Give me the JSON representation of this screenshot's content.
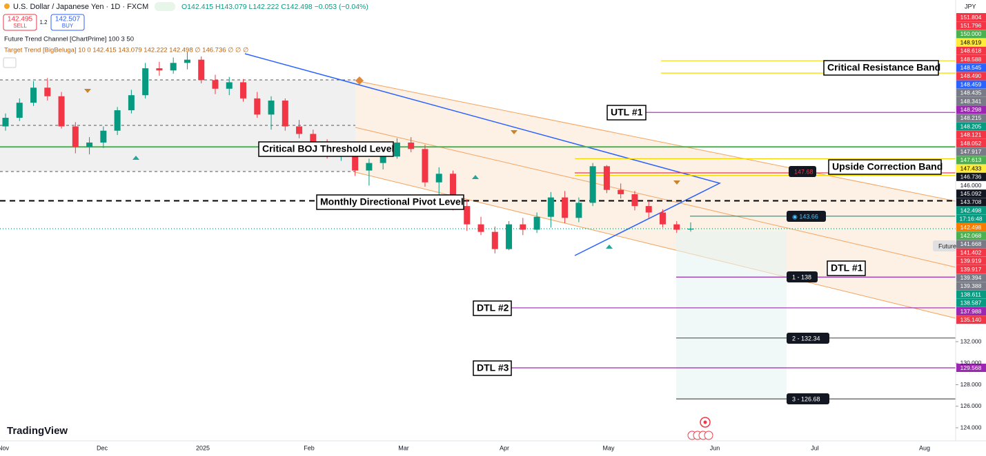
{
  "header": {
    "symbol": "U.S. Dollar / Japanese Yen · 1D · FXCM",
    "ohlc": "O142.415 H143.079 L142.222 C142.498 −0.053 (−0.04%)",
    "sell_price": "142.495",
    "sell": "SELL",
    "spread": "1.2",
    "buy_price": "142.507",
    "buy": "BUY",
    "indicator_1": "Future Trend Channel [ChartPrime] 100 3 50",
    "indicator_2": "Target Trend [BigBeluga] 10 0 142.415 143.079 142.222 142.498 ∅ 146.736 ∅ ∅ ∅",
    "currency": "JPY"
  },
  "candles": [
    [
      152.0,
      153.2,
      151.6,
      152.8
    ],
    [
      152.8,
      154.6,
      152.5,
      154.2
    ],
    [
      154.2,
      156.2,
      153.9,
      155.6
    ],
    [
      155.6,
      156.5,
      154.4,
      154.8
    ],
    [
      154.8,
      155.2,
      151.8,
      152.0
    ],
    [
      152.0,
      152.4,
      149.5,
      150.1
    ],
    [
      150.1,
      151.0,
      149.4,
      150.5
    ],
    [
      150.5,
      152.0,
      150.0,
      151.6
    ],
    [
      151.6,
      153.8,
      151.2,
      153.5
    ],
    [
      153.5,
      155.4,
      153.2,
      154.9
    ],
    [
      154.9,
      157.9,
      154.6,
      157.4
    ],
    [
      157.4,
      158.0,
      156.7,
      157.2
    ],
    [
      157.2,
      158.4,
      156.9,
      157.9
    ],
    [
      157.9,
      158.9,
      157.3,
      158.2
    ],
    [
      158.2,
      158.5,
      156.0,
      156.3
    ],
    [
      156.3,
      156.8,
      155.0,
      155.5
    ],
    [
      155.5,
      156.6,
      154.9,
      156.1
    ],
    [
      156.1,
      156.4,
      154.3,
      154.6
    ],
    [
      154.6,
      155.2,
      152.8,
      153.1
    ],
    [
      153.1,
      154.8,
      151.7,
      154.4
    ],
    [
      154.4,
      154.6,
      151.6,
      152.0
    ],
    [
      152.0,
      152.6,
      150.9,
      151.3
    ],
    [
      151.3,
      151.7,
      149.6,
      150.0
    ],
    [
      150.0,
      150.8,
      149.0,
      149.4
    ],
    [
      149.4,
      150.2,
      148.8,
      149.8
    ],
    [
      149.8,
      150.0,
      147.4,
      147.9
    ],
    [
      147.9,
      149.0,
      146.5,
      148.6
    ],
    [
      148.6,
      149.5,
      148.0,
      149.2
    ],
    [
      149.2,
      150.9,
      149.0,
      150.5
    ],
    [
      150.5,
      151.0,
      149.6,
      149.9
    ],
    [
      149.9,
      150.3,
      146.4,
      146.8
    ],
    [
      146.8,
      148.2,
      144.6,
      147.6
    ],
    [
      147.6,
      147.9,
      144.2,
      144.6
    ],
    [
      144.6,
      145.2,
      142.3,
      142.9
    ],
    [
      142.9,
      143.6,
      141.9,
      142.2
    ],
    [
      142.2,
      142.7,
      140.2,
      140.6
    ],
    [
      140.6,
      143.2,
      140.5,
      142.9
    ],
    [
      142.9,
      143.5,
      141.9,
      142.4
    ],
    [
      142.4,
      144.0,
      142.1,
      143.6
    ],
    [
      143.6,
      145.9,
      142.6,
      145.4
    ],
    [
      145.4,
      146.0,
      143.0,
      143.5
    ],
    [
      143.5,
      145.4,
      143.1,
      144.9
    ],
    [
      144.9,
      148.6,
      144.6,
      148.3
    ],
    [
      148.3,
      148.4,
      145.8,
      146.1
    ],
    [
      146.1,
      146.7,
      145.3,
      145.7
    ],
    [
      145.7,
      146.0,
      144.2,
      144.6
    ],
    [
      144.6,
      145.1,
      143.5,
      144.0
    ],
    [
      144.0,
      144.3,
      142.6,
      142.9
    ],
    [
      142.9,
      143.2,
      142.1,
      142.4
    ],
    [
      142.415,
      143.079,
      142.222,
      142.498
    ]
  ],
  "levels": [
    {
      "price": 158.1,
      "color": "#f5d800",
      "from": 958
    },
    {
      "price": 156.95,
      "color": "#f5d800",
      "from": 958
    },
    {
      "price": 153.3,
      "color": "#9c27b0",
      "from": 936
    },
    {
      "price": 150.1,
      "color": "#4caf50",
      "from": 0
    },
    {
      "price": 149.0,
      "color": "#f5d800",
      "from": 833
    },
    {
      "price": 147.45,
      "color": "#f5d800",
      "from": 833
    },
    {
      "price": 147.68,
      "color": "#f23645",
      "from": 833
    },
    {
      "price": 145.092,
      "color": "#000000",
      "from": 0,
      "dashed": true
    },
    {
      "price": 142.498,
      "color": "#089981",
      "from": 0,
      "dotted": true
    },
    {
      "price": 143.66,
      "color": "#089981",
      "from": 1000
    },
    {
      "price": 138.0,
      "color": "#9c27b0",
      "from": 980
    },
    {
      "price": 135.14,
      "color": "#9c27b0",
      "from": 741
    },
    {
      "price": 132.34,
      "color": "#555555",
      "from": 980
    },
    {
      "price": 129.568,
      "color": "#9c27b0",
      "from": 741
    },
    {
      "price": 126.68,
      "color": "#555555",
      "from": 980
    }
  ],
  "annotations": [
    "Critical Resistance Band",
    "UTL #1",
    "Critical BOJ Threshold Level",
    "Upside Correction Band",
    "Monthly Directional Pivot Level",
    "DTL #1",
    "DTL #2",
    "DTL #3"
  ],
  "tags": [
    "147.68",
    "◉ 143.66",
    "1 - 138",
    "2 - 132.34",
    "3 - 126.68",
    "Future"
  ],
  "axis_stack": [
    {
      "text": "151.804",
      "bg": "#f23645",
      "fg": "#fff"
    },
    {
      "text": "151.796",
      "bg": "#f23645",
      "fg": "#fff"
    },
    {
      "text": "150.000",
      "bg": "#4caf50",
      "fg": "#fff"
    },
    {
      "text": "148.919",
      "bg": "#ffeb3b",
      "fg": "#000"
    },
    {
      "text": "148.618",
      "bg": "#f23645",
      "fg": "#fff"
    },
    {
      "text": "148.588",
      "bg": "#f23645",
      "fg": "#fff"
    },
    {
      "text": "148.545",
      "bg": "#2962ff",
      "fg": "#fff"
    },
    {
      "text": "148.490",
      "bg": "#f23645",
      "fg": "#fff"
    },
    {
      "text": "148.459",
      "bg": "#2962ff",
      "fg": "#fff"
    },
    {
      "text": "148.435",
      "bg": "#787b86",
      "fg": "#fff"
    },
    {
      "text": "148.341",
      "bg": "#787b86",
      "fg": "#fff"
    },
    {
      "text": "148.298",
      "bg": "#9c27b0",
      "fg": "#fff"
    },
    {
      "text": "148.215",
      "bg": "#787b86",
      "fg": "#fff"
    },
    {
      "text": "148.205",
      "bg": "#089981",
      "fg": "#fff"
    },
    {
      "text": "148.121",
      "bg": "#f23645",
      "fg": "#fff"
    },
    {
      "text": "148.052",
      "bg": "#f23645",
      "fg": "#fff"
    },
    {
      "text": "147.917",
      "bg": "#787b86",
      "fg": "#fff"
    },
    {
      "text": "147.613",
      "bg": "#4caf50",
      "fg": "#fff"
    },
    {
      "text": "147.433",
      "bg": "#ffeb3b",
      "fg": "#000"
    },
    {
      "text": "146.736",
      "bg": "#131722",
      "fg": "#fff"
    },
    {
      "text": "146.000",
      "bg": "#ffffff",
      "fg": "#131722"
    },
    {
      "text": "145.092",
      "bg": "#131722",
      "fg": "#fff"
    },
    {
      "text": "143.708",
      "bg": "#131722",
      "fg": "#fff"
    },
    {
      "text": "142.498",
      "bg": "#089981",
      "fg": "#fff"
    },
    {
      "text": "17:16:48",
      "bg": "#089981",
      "fg": "#fff"
    },
    {
      "text": "142.498",
      "bg": "#f57c00",
      "fg": "#fff"
    },
    {
      "text": "142.068",
      "bg": "#4caf50",
      "fg": "#fff"
    },
    {
      "text": "141.668",
      "bg": "#787b86",
      "fg": "#fff"
    },
    {
      "text": "141.402",
      "bg": "#f23645",
      "fg": "#fff"
    },
    {
      "text": "139.919",
      "bg": "#f23645",
      "fg": "#fff"
    },
    {
      "text": "139.917",
      "bg": "#f23645",
      "fg": "#fff"
    },
    {
      "text": "139.394",
      "bg": "#787b86",
      "fg": "#fff"
    },
    {
      "text": "139.388",
      "bg": "#787b86",
      "fg": "#fff"
    },
    {
      "text": "138.611",
      "bg": "#089981",
      "fg": "#fff"
    },
    {
      "text": "138.587",
      "bg": "#089981",
      "fg": "#fff"
    },
    {
      "text": "137.988",
      "bg": "#9c27b0",
      "fg": "#fff"
    },
    {
      "text": "135.140",
      "bg": "#f23645",
      "fg": "#fff"
    },
    {
      "text": "129.568",
      "bg": "#9c27b0",
      "fg": "#fff"
    }
  ],
  "axis_ticks": [
    {
      "value": 132,
      "label": "132.000"
    },
    {
      "value": 130,
      "label": "130.000"
    },
    {
      "value": 128,
      "label": "128.000"
    },
    {
      "value": 126,
      "label": "126.000"
    },
    {
      "value": 124,
      "label": "124.000"
    }
  ],
  "time_axis": [
    "Nov",
    "Dec",
    "2025",
    "Feb",
    "Mar",
    "Apr",
    "May",
    "Jun",
    "Jul",
    "Aug"
  ],
  "brand": "TradingView"
}
